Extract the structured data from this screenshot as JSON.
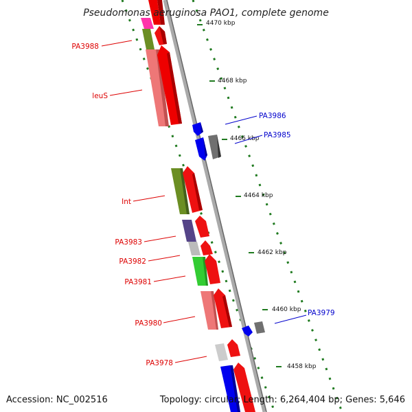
{
  "title": "Pseudomonas aeruginosa PAO1, complete genome",
  "footer": {
    "accession": "Accession: NC_002516",
    "summary": "Topology: circular; Length: 6,264,404 bp; Genes: 5,646"
  },
  "colors": {
    "forward_strand": "#ff0000",
    "reverse_strand": "#0000ff",
    "backbone": "#999999",
    "tick": "#1f7a1f",
    "label_red": "#dd0000",
    "label_blue": "#0000cc",
    "trna": "#444444"
  },
  "kbp_ticks": [
    "4470 kbp",
    "4468 kbp",
    "4466 kbp",
    "4464 kbp",
    "4462 kbp",
    "4460 kbp",
    "4458 kbp"
  ],
  "gene_labels": [
    {
      "name": "PA3988",
      "color": "#dd0000"
    },
    {
      "name": "leuS",
      "color": "#dd0000"
    },
    {
      "name": "PA3986",
      "color": "#0000cc"
    },
    {
      "name": "PA3985",
      "color": "#0000cc"
    },
    {
      "name": "Int",
      "color": "#dd0000"
    },
    {
      "name": "PA3983",
      "color": "#dd0000"
    },
    {
      "name": "PA3982",
      "color": "#dd0000"
    },
    {
      "name": "PA3981",
      "color": "#dd0000"
    },
    {
      "name": "PA3980",
      "color": "#dd0000"
    },
    {
      "name": "PA3979",
      "color": "#0000cc"
    },
    {
      "name": "PA3978",
      "color": "#dd0000"
    }
  ]
}
